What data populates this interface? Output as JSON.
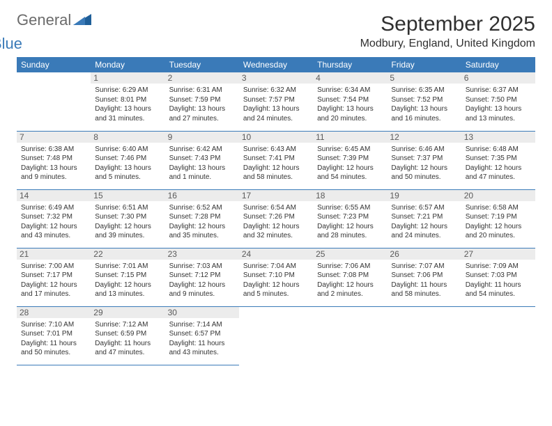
{
  "brand": {
    "word1": "General",
    "word2": "Blue",
    "logo_color": "#1f5f99"
  },
  "title": "September 2025",
  "location": "Modbury, England, United Kingdom",
  "colors": {
    "header_bg": "#3a7ab8",
    "header_fg": "#ffffff",
    "rule": "#3a7ab8",
    "daynum_bg": "#ececec",
    "text": "#333333"
  },
  "weekdays": [
    "Sunday",
    "Monday",
    "Tuesday",
    "Wednesday",
    "Thursday",
    "Friday",
    "Saturday"
  ],
  "start_offset": 1,
  "days": [
    {
      "n": 1,
      "sunrise": "6:29 AM",
      "sunset": "8:01 PM",
      "daylight": "13 hours and 31 minutes."
    },
    {
      "n": 2,
      "sunrise": "6:31 AM",
      "sunset": "7:59 PM",
      "daylight": "13 hours and 27 minutes."
    },
    {
      "n": 3,
      "sunrise": "6:32 AM",
      "sunset": "7:57 PM",
      "daylight": "13 hours and 24 minutes."
    },
    {
      "n": 4,
      "sunrise": "6:34 AM",
      "sunset": "7:54 PM",
      "daylight": "13 hours and 20 minutes."
    },
    {
      "n": 5,
      "sunrise": "6:35 AM",
      "sunset": "7:52 PM",
      "daylight": "13 hours and 16 minutes."
    },
    {
      "n": 6,
      "sunrise": "6:37 AM",
      "sunset": "7:50 PM",
      "daylight": "13 hours and 13 minutes."
    },
    {
      "n": 7,
      "sunrise": "6:38 AM",
      "sunset": "7:48 PM",
      "daylight": "13 hours and 9 minutes."
    },
    {
      "n": 8,
      "sunrise": "6:40 AM",
      "sunset": "7:46 PM",
      "daylight": "13 hours and 5 minutes."
    },
    {
      "n": 9,
      "sunrise": "6:42 AM",
      "sunset": "7:43 PM",
      "daylight": "13 hours and 1 minute."
    },
    {
      "n": 10,
      "sunrise": "6:43 AM",
      "sunset": "7:41 PM",
      "daylight": "12 hours and 58 minutes."
    },
    {
      "n": 11,
      "sunrise": "6:45 AM",
      "sunset": "7:39 PM",
      "daylight": "12 hours and 54 minutes."
    },
    {
      "n": 12,
      "sunrise": "6:46 AM",
      "sunset": "7:37 PM",
      "daylight": "12 hours and 50 minutes."
    },
    {
      "n": 13,
      "sunrise": "6:48 AM",
      "sunset": "7:35 PM",
      "daylight": "12 hours and 47 minutes."
    },
    {
      "n": 14,
      "sunrise": "6:49 AM",
      "sunset": "7:32 PM",
      "daylight": "12 hours and 43 minutes."
    },
    {
      "n": 15,
      "sunrise": "6:51 AM",
      "sunset": "7:30 PM",
      "daylight": "12 hours and 39 minutes."
    },
    {
      "n": 16,
      "sunrise": "6:52 AM",
      "sunset": "7:28 PM",
      "daylight": "12 hours and 35 minutes."
    },
    {
      "n": 17,
      "sunrise": "6:54 AM",
      "sunset": "7:26 PM",
      "daylight": "12 hours and 32 minutes."
    },
    {
      "n": 18,
      "sunrise": "6:55 AM",
      "sunset": "7:23 PM",
      "daylight": "12 hours and 28 minutes."
    },
    {
      "n": 19,
      "sunrise": "6:57 AM",
      "sunset": "7:21 PM",
      "daylight": "12 hours and 24 minutes."
    },
    {
      "n": 20,
      "sunrise": "6:58 AM",
      "sunset": "7:19 PM",
      "daylight": "12 hours and 20 minutes."
    },
    {
      "n": 21,
      "sunrise": "7:00 AM",
      "sunset": "7:17 PM",
      "daylight": "12 hours and 17 minutes."
    },
    {
      "n": 22,
      "sunrise": "7:01 AM",
      "sunset": "7:15 PM",
      "daylight": "12 hours and 13 minutes."
    },
    {
      "n": 23,
      "sunrise": "7:03 AM",
      "sunset": "7:12 PM",
      "daylight": "12 hours and 9 minutes."
    },
    {
      "n": 24,
      "sunrise": "7:04 AM",
      "sunset": "7:10 PM",
      "daylight": "12 hours and 5 minutes."
    },
    {
      "n": 25,
      "sunrise": "7:06 AM",
      "sunset": "7:08 PM",
      "daylight": "12 hours and 2 minutes."
    },
    {
      "n": 26,
      "sunrise": "7:07 AM",
      "sunset": "7:06 PM",
      "daylight": "11 hours and 58 minutes."
    },
    {
      "n": 27,
      "sunrise": "7:09 AM",
      "sunset": "7:03 PM",
      "daylight": "11 hours and 54 minutes."
    },
    {
      "n": 28,
      "sunrise": "7:10 AM",
      "sunset": "7:01 PM",
      "daylight": "11 hours and 50 minutes."
    },
    {
      "n": 29,
      "sunrise": "7:12 AM",
      "sunset": "6:59 PM",
      "daylight": "11 hours and 47 minutes."
    },
    {
      "n": 30,
      "sunrise": "7:14 AM",
      "sunset": "6:57 PM",
      "daylight": "11 hours and 43 minutes."
    }
  ]
}
